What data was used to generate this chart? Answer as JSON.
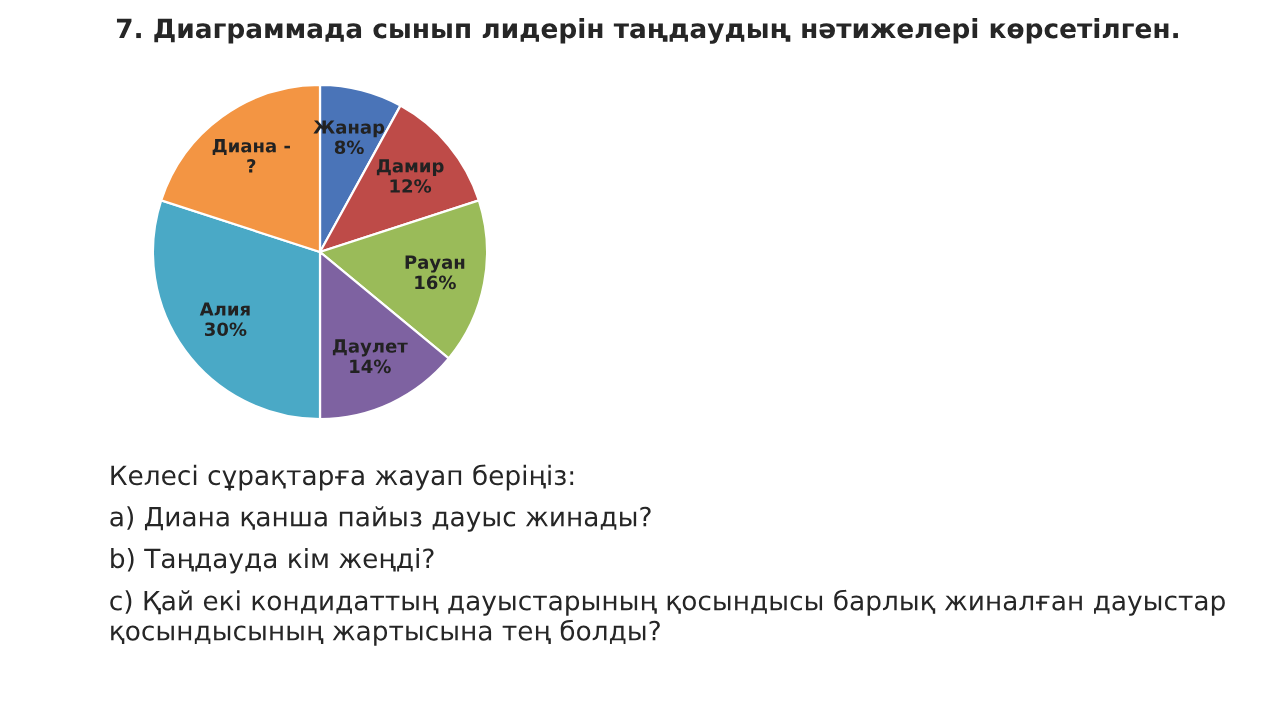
{
  "chart_data": {
    "type": "pie",
    "title": "7. Диаграммада сынып лидерін таңдаудың нәтижелері көрсетілген.",
    "categories": [
      "Жанар",
      "Дамир",
      "Рауан",
      "Даулет",
      "Алия",
      "Диана -"
    ],
    "values": [
      8,
      12,
      16,
      14,
      30,
      20
    ],
    "value_labels": [
      "8%",
      "12%",
      "16%",
      "14%",
      "30%",
      "?"
    ],
    "colors": [
      "#4a74b8",
      "#be4b48",
      "#9abb59",
      "#7e62a1",
      "#4aa9c6",
      "#f39543"
    ],
    "annotations": [
      "Келесі сұрақтарға жауап беріңіз:",
      "a) Диана қанша пайыз дауыс жинады?",
      "b) Таңдауда кім жеңді?",
      "c) Қай екі кондидаттың дауыстарының қосындысы барлық жиналған дауыстар қосындысының жартысына тең болды?"
    ]
  }
}
